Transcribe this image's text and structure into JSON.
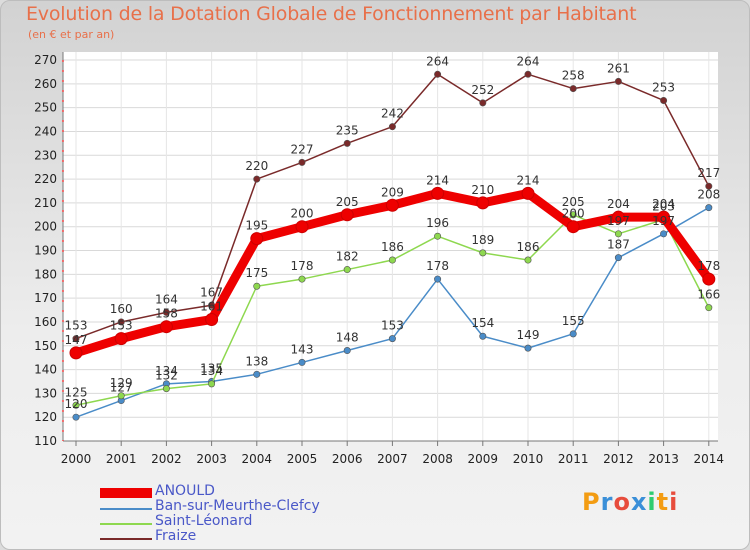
{
  "title": "Evolution de la Dotation Globale de Fonctionnement par Habitant",
  "subtitle": "(en € et par an)",
  "logo": {
    "text": "Proxiti",
    "letters": [
      "P",
      "r",
      "o",
      "x",
      "i",
      "t",
      "i"
    ],
    "colors": [
      "#f39c12",
      "#3a8fd8",
      "#e74c3c",
      "#3a8fd8",
      "#2ecc71",
      "#f39c12",
      "#e74c3c"
    ]
  },
  "chart_data": {
    "type": "line",
    "categories": [
      "2000",
      "2001",
      "2002",
      "2003",
      "2004",
      "2005",
      "2006",
      "2007",
      "2008",
      "2009",
      "2010",
      "2011",
      "2012",
      "2013",
      "2014"
    ],
    "ylim": [
      110,
      270
    ],
    "yticks": [
      "110",
      "120",
      "130",
      "140",
      "150",
      "160",
      "170",
      "180",
      "190",
      "200",
      "210",
      "220",
      "230",
      "240",
      "250",
      "260",
      "270"
    ],
    "grid": true,
    "legend": "bottom-left",
    "series": [
      {
        "name": "ANOULD",
        "color": "#ee0000",
        "thick": true,
        "values": [
          147,
          153,
          158,
          161,
          195,
          200,
          205,
          209,
          214,
          210,
          214,
          200,
          204,
          204,
          178
        ],
        "labels": [
          "147",
          "153",
          "158",
          "161",
          "195",
          "200",
          "205",
          "209",
          "214",
          "210",
          "214",
          "200",
          "204",
          "204",
          "178"
        ]
      },
      {
        "name": "Ban-sur-Meurthe-Clefcy",
        "color": "#4a8cc8",
        "thick": false,
        "values": [
          120,
          127,
          134,
          135,
          138,
          143,
          148,
          153,
          178,
          154,
          149,
          155,
          187,
          197,
          208
        ],
        "labels": [
          "120",
          "127",
          "134",
          "135",
          "138",
          "143",
          "148",
          "153",
          "178",
          "154",
          "149",
          "155",
          "187",
          "197",
          "208"
        ]
      },
      {
        "name": "Saint-Léonard",
        "color": "#8ed84f",
        "thick": false,
        "values": [
          125,
          129,
          132,
          134,
          175,
          178,
          182,
          186,
          196,
          189,
          186,
          205,
          197,
          203,
          166
        ],
        "labels": [
          "125",
          "129",
          "132",
          "134",
          "175",
          "178",
          "182",
          "186",
          "196",
          "189",
          "186",
          "205",
          "197",
          "203",
          "166"
        ]
      },
      {
        "name": "Fraize",
        "color": "#7a2a2a",
        "thick": false,
        "values": [
          153,
          160,
          164,
          167,
          220,
          227,
          235,
          242,
          264,
          252,
          264,
          258,
          261,
          253,
          217
        ],
        "labels": [
          "153",
          "160",
          "164",
          "167",
          "220",
          "227",
          "235",
          "242",
          "264",
          "252",
          "264",
          "258",
          "261",
          "253",
          "217"
        ]
      }
    ]
  }
}
